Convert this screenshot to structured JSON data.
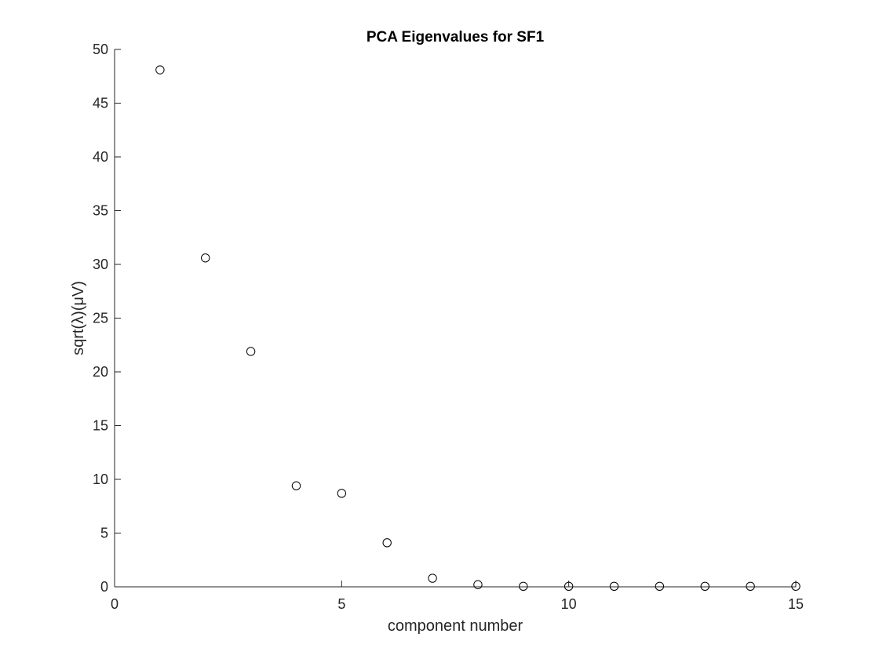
{
  "chart_data": {
    "type": "scatter",
    "title": "PCA Eigenvalues for SF1",
    "xlabel": "component number",
    "ylabel": "sqrt(λ)(μV)",
    "xlim": [
      0,
      15
    ],
    "ylim": [
      0,
      50
    ],
    "xticks": [
      0,
      5,
      10,
      15
    ],
    "yticks": [
      0,
      5,
      10,
      15,
      20,
      25,
      30,
      35,
      40,
      45,
      50
    ],
    "grid": false,
    "marker": "open-circle",
    "marker_color": "#000000",
    "series": [
      {
        "x": [
          1,
          2,
          3,
          4,
          5,
          6,
          7,
          8,
          9,
          10,
          11,
          12,
          13,
          14,
          15
        ],
        "y": [
          48.1,
          30.6,
          21.9,
          9.4,
          8.7,
          4.1,
          0.8,
          0.2,
          0.05,
          0.05,
          0.05,
          0.05,
          0.05,
          0.05,
          0.05
        ]
      }
    ]
  }
}
